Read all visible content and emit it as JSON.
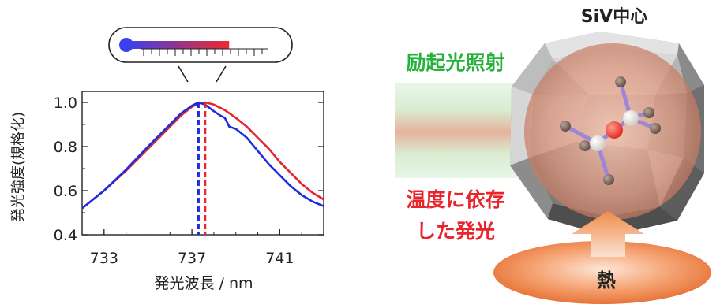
{
  "chart_data": {
    "type": "line",
    "xlabel": "発光波長 / nm",
    "ylabel": "発光強度(規格化)",
    "xlim": [
      732,
      743
    ],
    "ylim": [
      0.4,
      1.05
    ],
    "x_ticks": [
      "733",
      "737",
      "741"
    ],
    "y_ticks": [
      "0.4",
      "0.6",
      "0.8",
      "1.0"
    ],
    "series": [
      {
        "color": "#e8242c",
        "peak": 737.6,
        "x": [
          732.0,
          733.0,
          734.0,
          735.0,
          736.0,
          736.5,
          737.0,
          737.3,
          737.6,
          738.0,
          738.5,
          739.0,
          739.5,
          740.0,
          740.5,
          741.0,
          741.5,
          742.0,
          742.5,
          743.0
        ],
        "y": [
          0.52,
          0.6,
          0.69,
          0.79,
          0.89,
          0.94,
          0.98,
          0.995,
          1.0,
          0.99,
          0.965,
          0.93,
          0.89,
          0.84,
          0.79,
          0.73,
          0.68,
          0.63,
          0.59,
          0.56
        ]
      },
      {
        "color": "#1f2be0",
        "peak": 737.3,
        "x": [
          732.0,
          733.0,
          734.0,
          735.0,
          736.0,
          736.5,
          737.0,
          737.3,
          737.6,
          738.0,
          738.3,
          738.5,
          738.7,
          739.0,
          739.5,
          740.0,
          740.5,
          741.0,
          741.5,
          742.0,
          742.5,
          743.0
        ],
        "y": [
          0.52,
          0.6,
          0.695,
          0.8,
          0.9,
          0.95,
          0.985,
          1.0,
          0.99,
          0.96,
          0.94,
          0.93,
          0.89,
          0.88,
          0.84,
          0.78,
          0.72,
          0.67,
          0.62,
          0.58,
          0.55,
          0.53
        ]
      }
    ],
    "marker_colors": [
      "#1f2be0",
      "#e8242c"
    ]
  },
  "diagram": {
    "title": "SiV中心",
    "excitation_label": "励起光照射",
    "emission_label_line1": "温度に依存",
    "emission_label_line2": "した発光",
    "heat_label": "熱",
    "excitation_color": "#25b13a",
    "emission_color": "#e8242c",
    "heat_color": "#f08c4a"
  },
  "thermometer": {
    "level": 0.62,
    "cold_color": "#3a3ff0",
    "hot_color": "#ef2a2a"
  }
}
